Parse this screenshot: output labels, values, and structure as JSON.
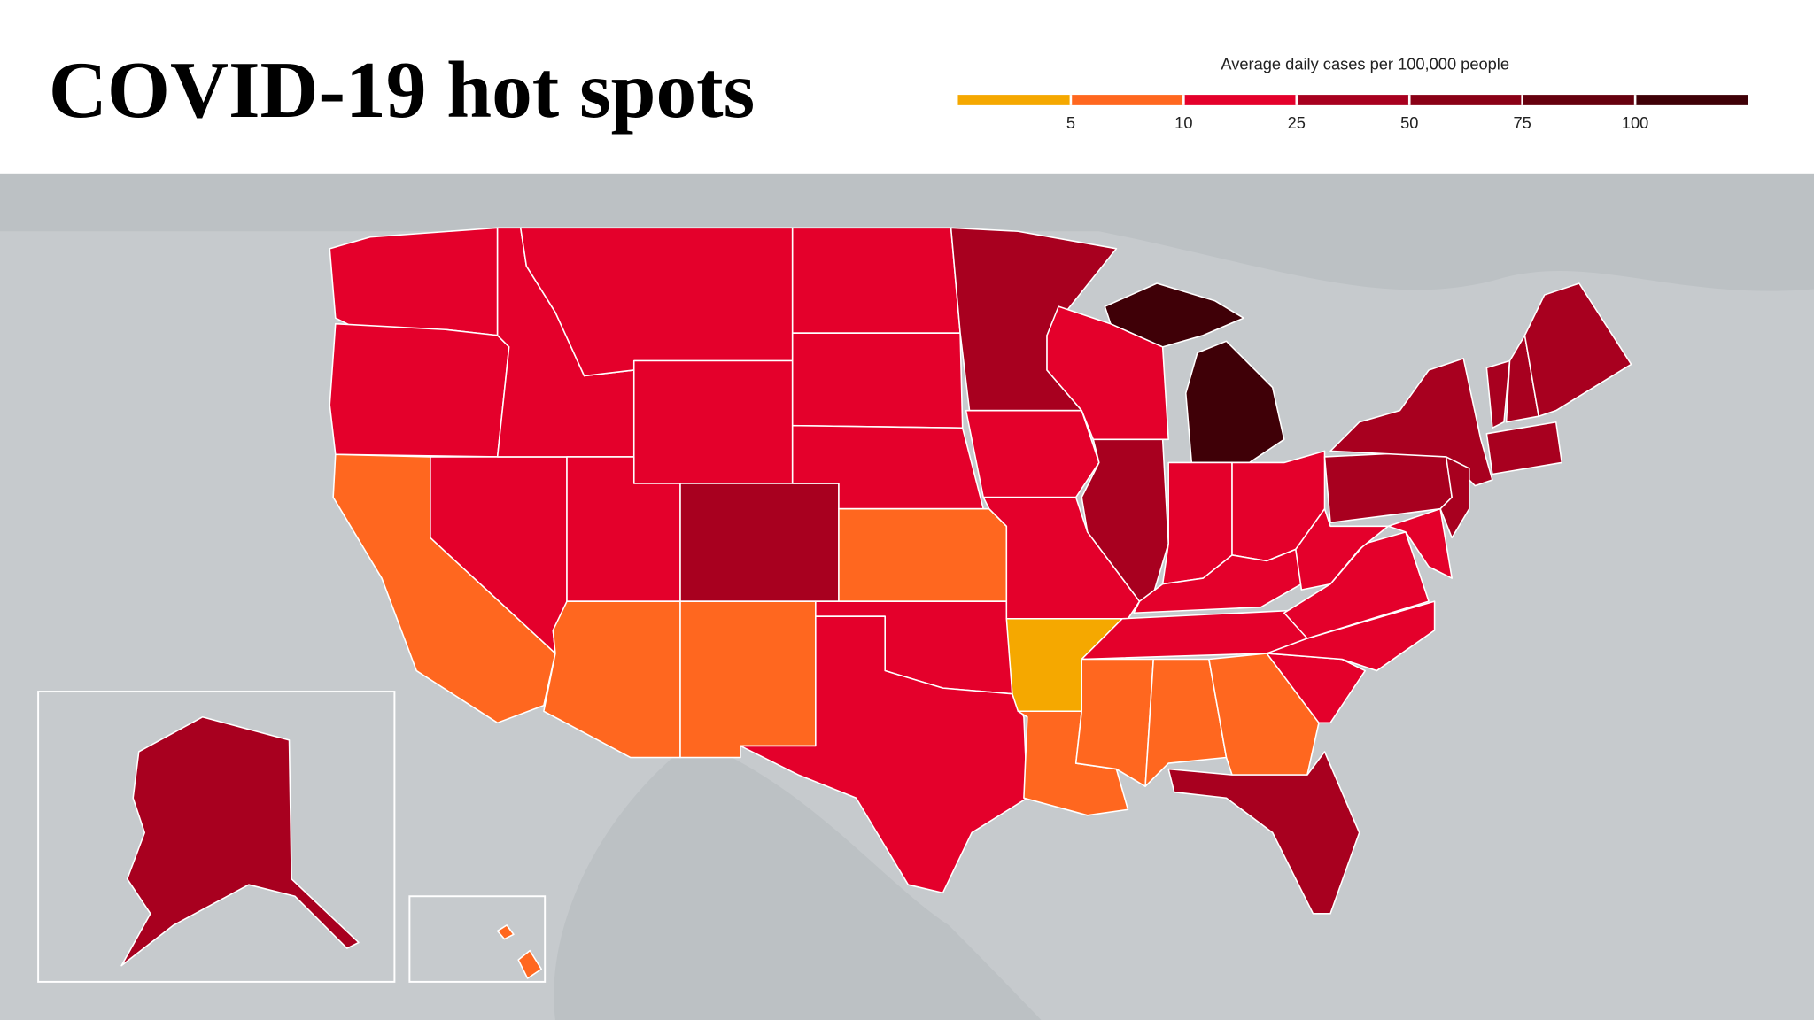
{
  "header": {
    "title": "COVID-19 hot spots"
  },
  "legend": {
    "title": "Average daily cases per 100,000 people",
    "ticks": [
      5,
      10,
      25,
      50,
      75,
      100
    ],
    "colors": [
      "#f5a800",
      "#ff671f",
      "#e4002b",
      "#a8001f",
      "#8a0016",
      "#66000e",
      "#3f0007"
    ]
  },
  "regions": [
    {
      "color": "#e4002b"
    },
    {
      "color": "#e4002b"
    },
    {
      "color": "#ff671f"
    },
    {
      "color": "#e4002b"
    },
    {
      "color": "#e4002b"
    },
    {
      "color": "#e4002b"
    },
    {
      "color": "#e4002b"
    },
    {
      "color": "#e4002b"
    },
    {
      "color": "#a8001f"
    },
    {
      "color": "#ff671f"
    },
    {
      "color": "#ff671f"
    },
    {
      "color": "#e4002b"
    },
    {
      "color": "#e4002b"
    },
    {
      "color": "#e4002b"
    },
    {
      "color": "#ff671f"
    },
    {
      "color": "#e4002b"
    },
    {
      "color": "#e4002b"
    },
    {
      "color": "#a8001f"
    },
    {
      "color": "#e4002b"
    },
    {
      "color": "#e4002b"
    },
    {
      "color": "#f5a800"
    },
    {
      "color": "#ff671f"
    },
    {
      "color": "#e4002b"
    },
    {
      "color": "#a8001f"
    },
    {
      "color": "#3f0007"
    },
    {
      "color": "#3f0007"
    },
    {
      "color": "#e4002b"
    },
    {
      "color": "#e4002b"
    },
    {
      "color": "#e4002b"
    },
    {
      "color": "#e4002b"
    },
    {
      "color": "#ff671f"
    },
    {
      "color": "#ff671f"
    },
    {
      "color": "#ff671f"
    },
    {
      "color": "#a8001f"
    },
    {
      "color": "#e4002b"
    },
    {
      "color": "#e4002b"
    },
    {
      "color": "#e4002b"
    },
    {
      "color": "#e4002b"
    },
    {
      "color": "#a8001f"
    },
    {
      "color": "#a8001f"
    },
    {
      "color": "#e4002b"
    },
    {
      "color": "#a8001f"
    },
    {
      "color": "#a8001f"
    },
    {
      "color": "#a8001f"
    },
    {
      "color": "#a8001f"
    },
    {
      "color": "#a8001f"
    },
    {
      "color": "#a8001f"
    },
    {
      "color": "#ff671f"
    }
  ]
}
